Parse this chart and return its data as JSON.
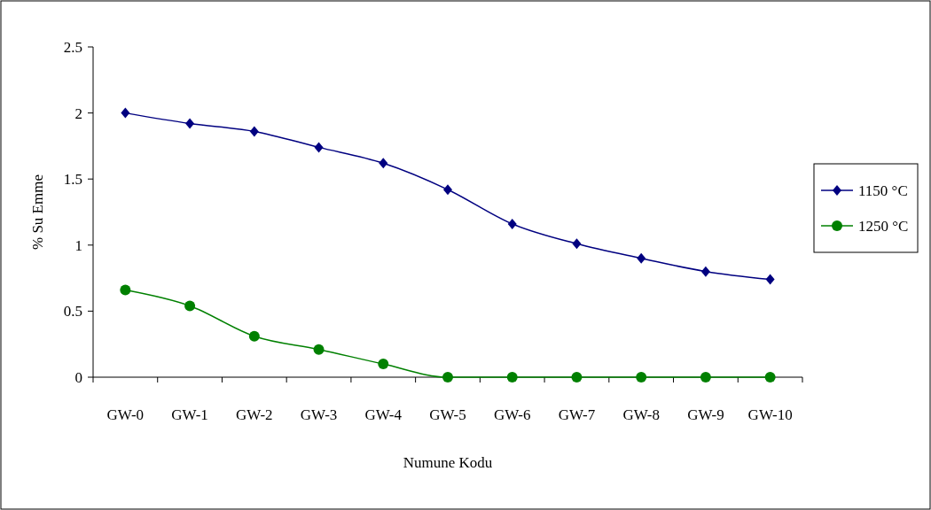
{
  "chart_data": {
    "type": "line",
    "xlabel": "Numune Kodu",
    "ylabel": "% Su Emme",
    "categories": [
      "GW-0",
      "GW-1",
      "GW-2",
      "GW-3",
      "GW-4",
      "GW-5",
      "GW-6",
      "GW-7",
      "GW-8",
      "GW-9",
      "GW-10"
    ],
    "series": [
      {
        "name": "1150 °C",
        "color": "#000080",
        "marker": "diamond",
        "values": [
          2.0,
          1.92,
          1.86,
          1.74,
          1.62,
          1.42,
          1.16,
          1.01,
          0.9,
          0.8,
          0.74
        ]
      },
      {
        "name": "1250 °C",
        "color": "#008000",
        "marker": "circle",
        "values": [
          0.66,
          0.54,
          0.31,
          0.21,
          0.1,
          0,
          0,
          0,
          0,
          0,
          0
        ]
      }
    ],
    "ylim": [
      0,
      2.5
    ],
    "yticks": [
      0,
      0.5,
      1,
      1.5,
      2,
      2.5
    ],
    "grid": false,
    "legend": "right"
  }
}
